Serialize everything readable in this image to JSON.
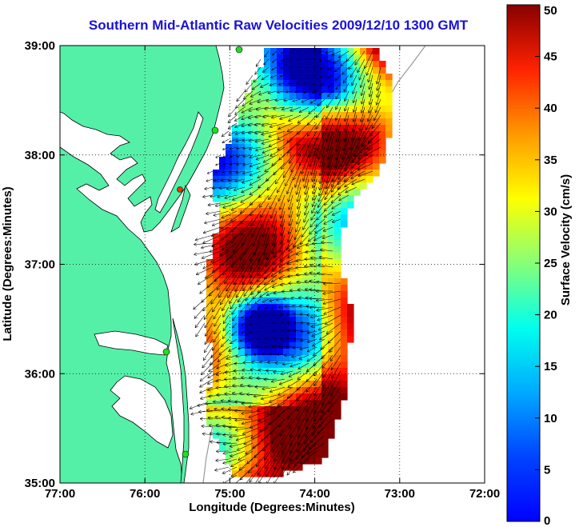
{
  "title": "Southern Mid-Atlantic Raw Velocities 2009/12/10 1300 GMT",
  "map": {
    "xlabel": "Longitude (Degrees:Minutes)",
    "ylabel": "Latitude (Degrees:Minutes)",
    "lon_range": [
      -77,
      -72
    ],
    "lat_range": [
      35,
      39
    ],
    "lon_ticks": [
      {
        "value": -77,
        "label": "77:00"
      },
      {
        "value": -76,
        "label": "76:00"
      },
      {
        "value": -75,
        "label": "75:00"
      },
      {
        "value": -74,
        "label": "74:00"
      },
      {
        "value": -73,
        "label": "73:00"
      },
      {
        "value": -72,
        "label": "72:00"
      }
    ],
    "lat_ticks": [
      {
        "value": 35,
        "label": "35:00"
      },
      {
        "value": 36,
        "label": "36:00"
      },
      {
        "value": 37,
        "label": "37:00"
      },
      {
        "value": 38,
        "label": "38:00"
      },
      {
        "value": 39,
        "label": "39:00"
      }
    ],
    "grid": "dotted",
    "land_color": "#55f0a8",
    "water_color": "#ffffff",
    "coast_color": "#000000",
    "station_color": "#22dd22",
    "station_highlight_color": "#ee3300"
  },
  "colorbar": {
    "label": "Surface Velocity (cm/s)",
    "range": [
      0,
      50
    ],
    "colormap": "jet",
    "ticks": [
      {
        "value": 0,
        "label": "0"
      },
      {
        "value": 5,
        "label": "5"
      },
      {
        "value": 10,
        "label": "10"
      },
      {
        "value": 15,
        "label": "15"
      },
      {
        "value": 20,
        "label": "20"
      },
      {
        "value": 25,
        "label": "25"
      },
      {
        "value": 30,
        "label": "30"
      },
      {
        "value": 35,
        "label": "35"
      },
      {
        "value": 40,
        "label": "40"
      },
      {
        "value": 45,
        "label": "45"
      },
      {
        "value": 50,
        "label": "50"
      }
    ]
  }
}
